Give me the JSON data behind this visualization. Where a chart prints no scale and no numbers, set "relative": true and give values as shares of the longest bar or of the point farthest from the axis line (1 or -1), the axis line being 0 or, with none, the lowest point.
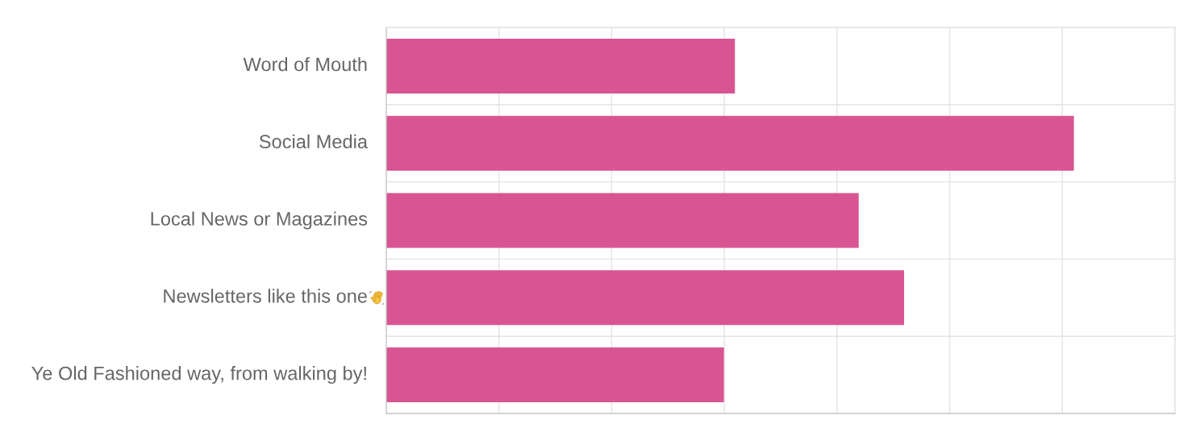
{
  "chart_data": {
    "type": "bar",
    "orientation": "horizontal",
    "relative": true,
    "categories": [
      "Word of Mouth",
      "Social Media",
      "Local News or Magazines",
      "Newsletters like this one",
      "Ye Old Fashioned way, from walking by!"
    ],
    "values": [
      0.507,
      1,
      0.687,
      0.753,
      0.491
    ],
    "color": "#d95592",
    "grid": true
  }
}
